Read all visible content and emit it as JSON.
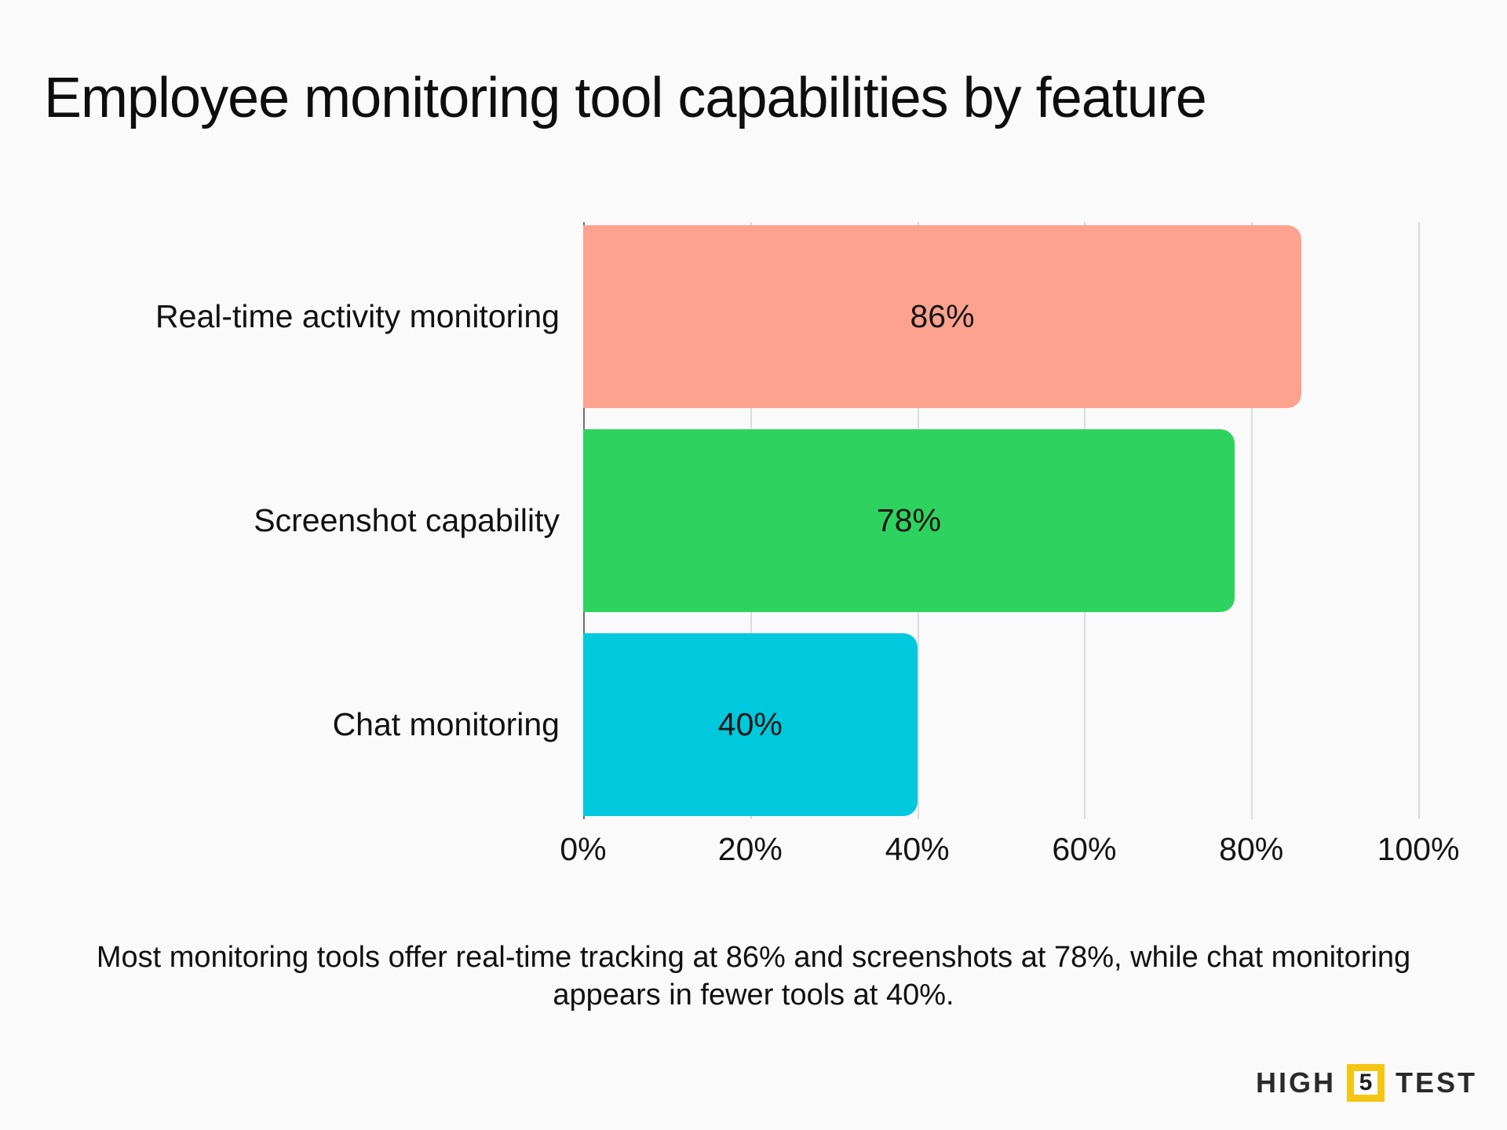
{
  "title": "Employee monitoring tool capabilities by feature",
  "chart_data": {
    "type": "bar",
    "orientation": "horizontal",
    "title": "Employee monitoring tool capabilities by feature",
    "categories": [
      "Real-time activity monitoring",
      "Screenshot capability",
      "Chat monitoring"
    ],
    "values": [
      86,
      78,
      40
    ],
    "value_labels": [
      "86%",
      "78%",
      "40%"
    ],
    "bar_colors": [
      "#FCA28E",
      "#2ED35F",
      "#00C9DD"
    ],
    "x_ticks": [
      "0%",
      "20%",
      "40%",
      "60%",
      "80%",
      "100%"
    ],
    "xlim": [
      0,
      100
    ],
    "grid": true,
    "legend": "none",
    "xlabel": "",
    "ylabel": ""
  },
  "caption": "Most monitoring tools offer real-time tracking at 86% and screenshots at 78%, while chat monitoring appears in fewer tools at 40%.",
  "logo": {
    "part1": "HIGH",
    "part2": "5",
    "part3": "TEST"
  },
  "colors": {
    "background": "#FAFAFA",
    "gridline": "#DBDBDB",
    "axis_line": "#6F6F6F",
    "text": "#141414",
    "logo_yellow": "#F5C513",
    "logo_text": "#2A2A2A"
  }
}
